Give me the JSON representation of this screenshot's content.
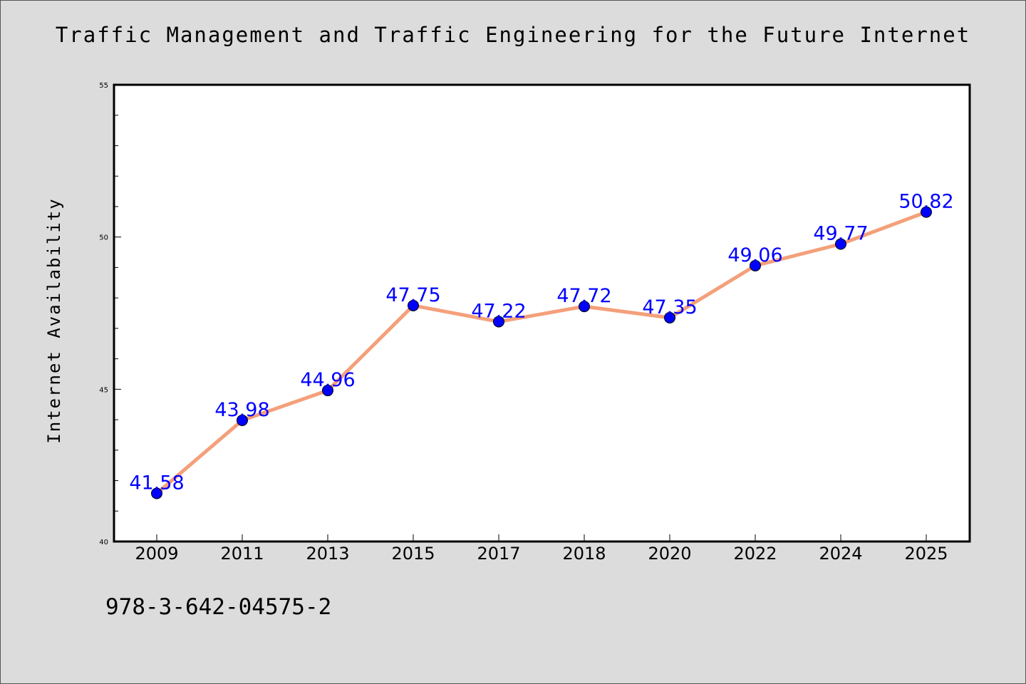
{
  "chart_data": {
    "type": "line",
    "title": "Traffic Management and Traffic Engineering for the Future Internet",
    "xlabel": "",
    "ylabel": "Internet Availability",
    "categories": [
      "2009",
      "2011",
      "2013",
      "2015",
      "2017",
      "2018",
      "2020",
      "2022",
      "2024",
      "2025"
    ],
    "series": [
      {
        "values": [
          41.58,
          43.98,
          44.96,
          47.75,
          47.22,
          47.72,
          47.35,
          49.06,
          49.77,
          50.82
        ],
        "labels": [
          "41.58",
          "43.98",
          "44.96",
          "47.75",
          "47.22",
          "47.72",
          "47.35",
          "49.06",
          "49.77",
          "50.82"
        ]
      }
    ],
    "ylim": [
      40,
      55
    ],
    "yticks": [
      "40",
      "45",
      "50",
      "55"
    ],
    "grid": false,
    "colors": {
      "line": "#f4a07a",
      "marker": "#0000ff",
      "data_label": "#0000ff"
    }
  },
  "footer": {
    "isbn": "978-3-642-04575-2"
  }
}
